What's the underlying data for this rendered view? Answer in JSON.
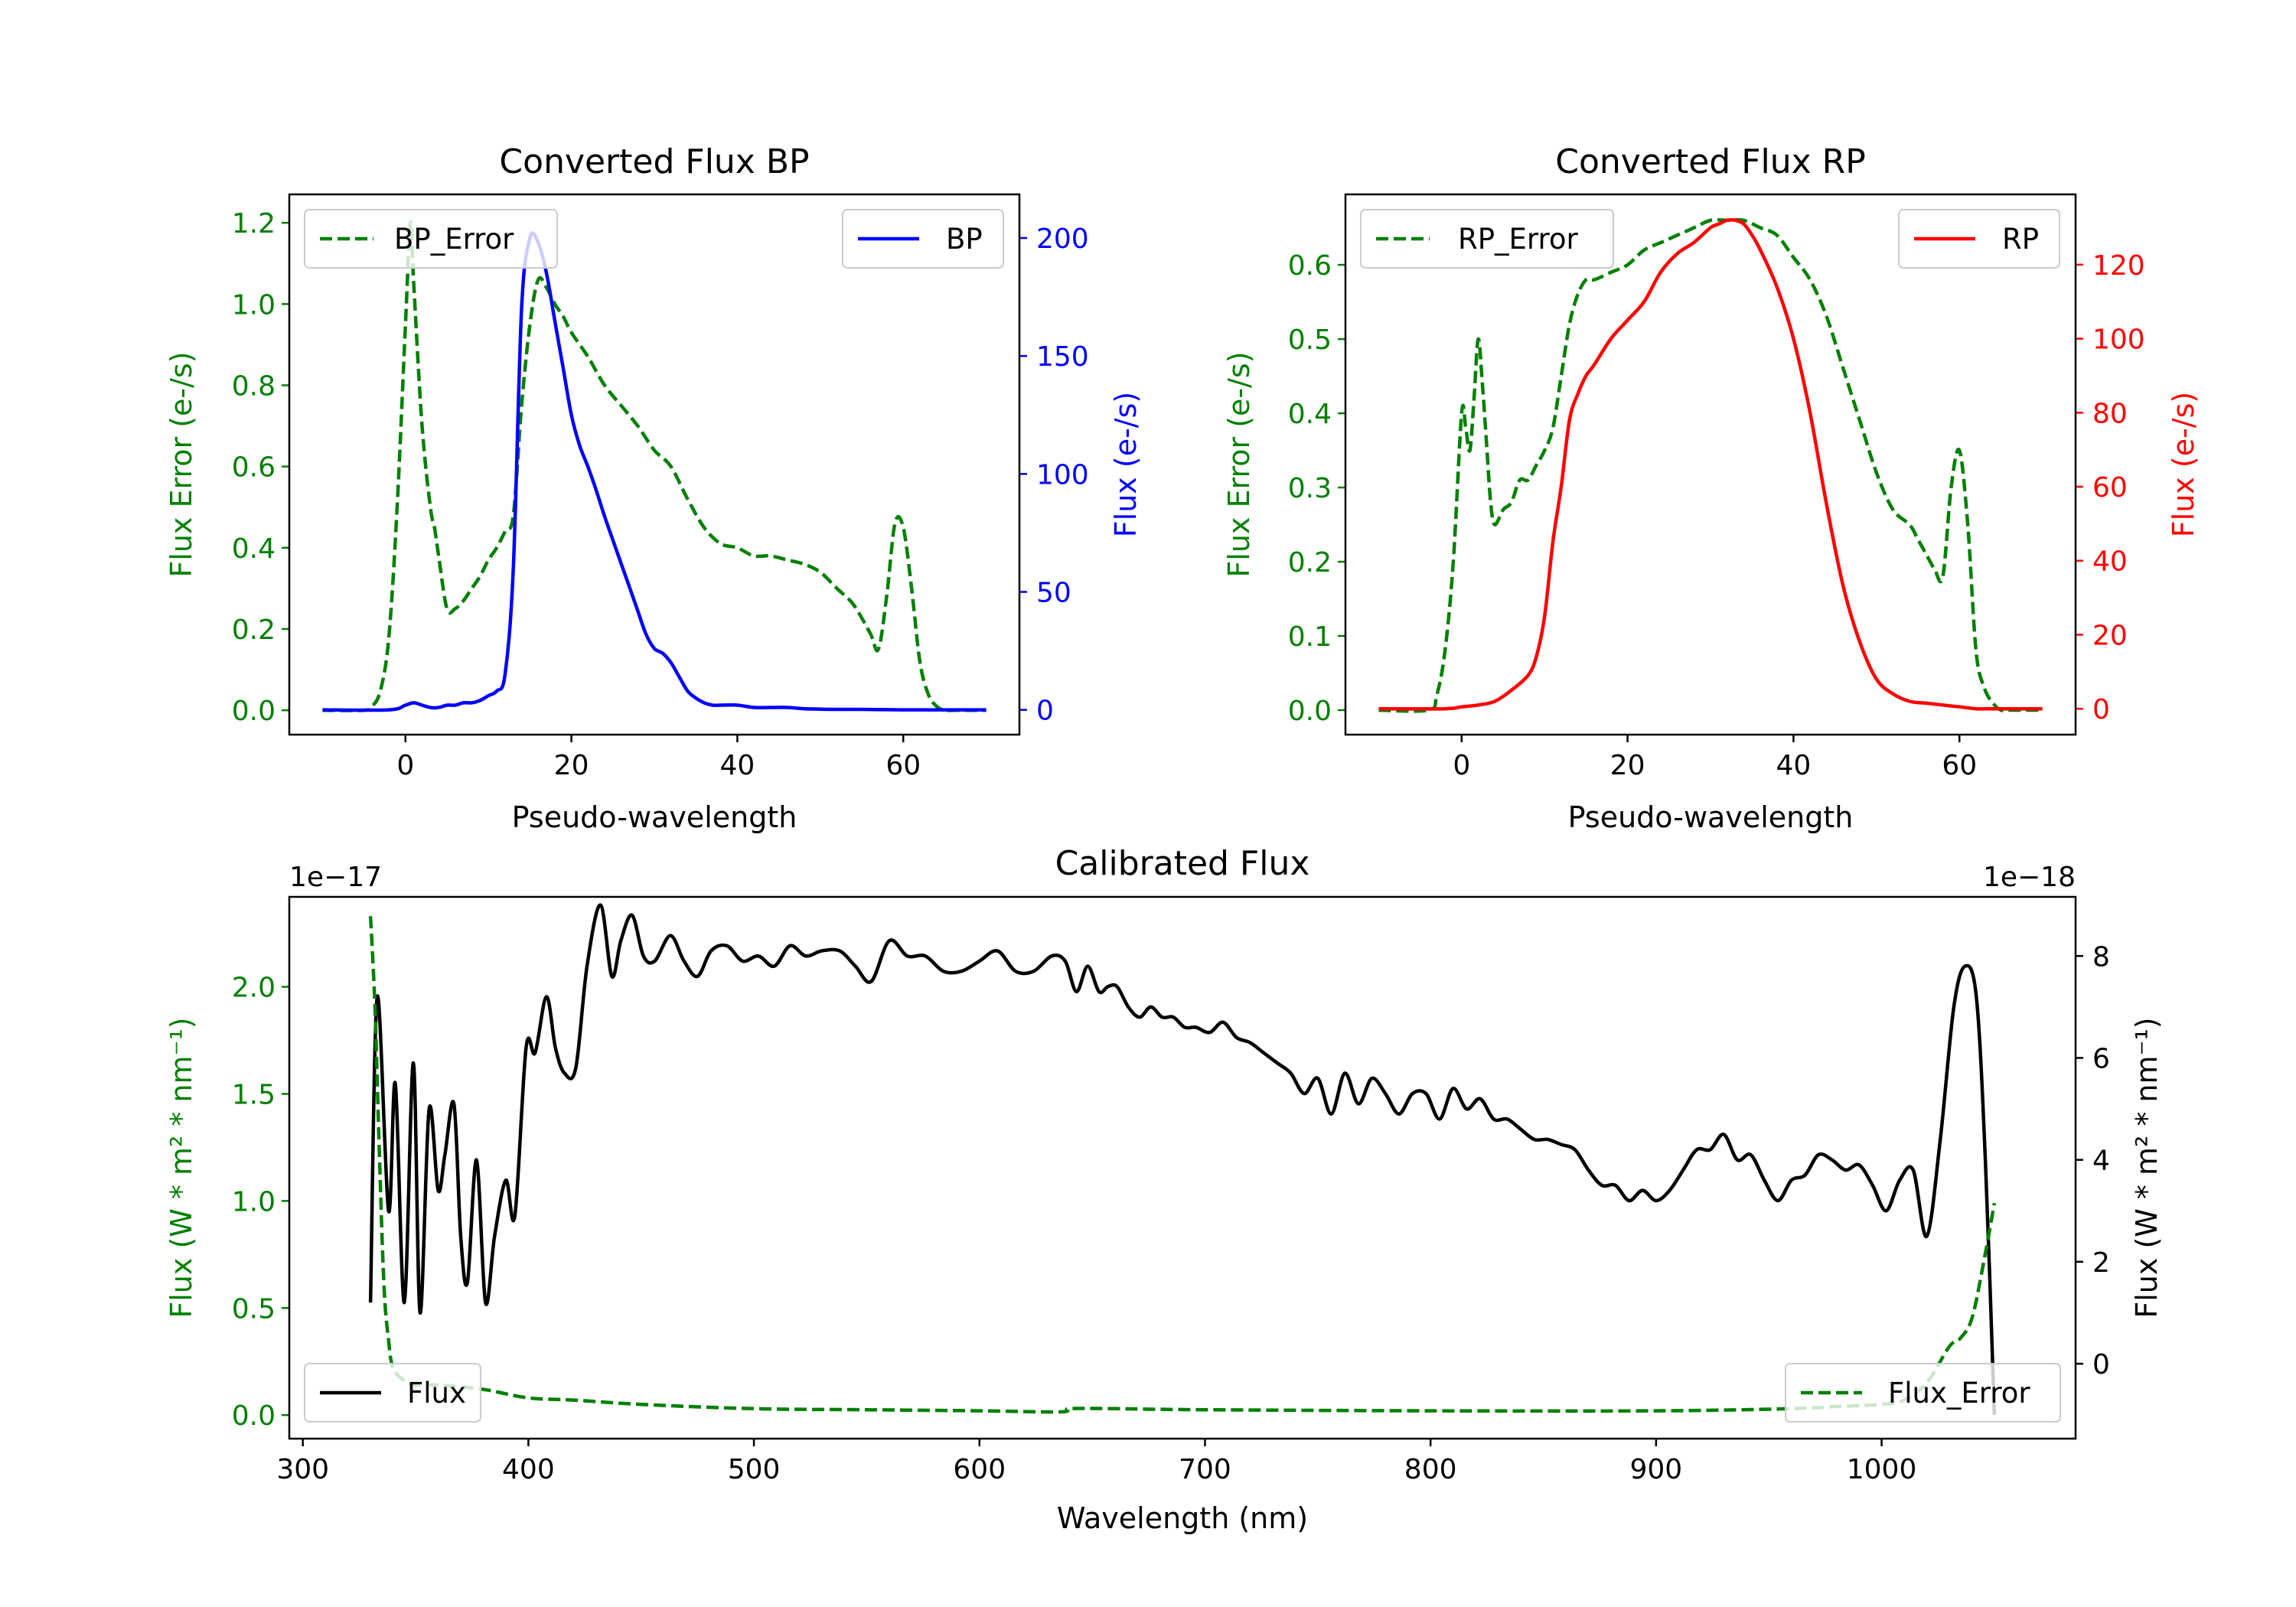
{
  "chart_data": [
    {
      "type": "line",
      "title": "Converted Flux BP",
      "xlabel": "Pseudo-wavelength",
      "xlim": [
        -14,
        74
      ],
      "xticks": [
        0,
        20,
        40,
        60
      ],
      "left_axis": {
        "label": "Flux Error (e-/s)",
        "color": "#008000",
        "ylim": [
          -0.06,
          1.27
        ],
        "ticks": [
          0.0,
          0.2,
          0.4,
          0.6,
          0.8,
          1.0,
          1.2
        ],
        "tick_labels": [
          "0.0",
          "0.2",
          "0.4",
          "0.6",
          "0.8",
          "1.0",
          "1.2"
        ]
      },
      "right_axis": {
        "label": "Flux (e-/s)",
        "color": "#0000ff",
        "ylim": [
          -10.5,
          218.5
        ],
        "ticks": [
          0,
          50,
          100,
          150,
          200
        ],
        "tick_labels": [
          "0",
          "50",
          "100",
          "150",
          "200"
        ]
      },
      "series": [
        {
          "name": "BP_Error",
          "axis": "left",
          "color": "#008000",
          "dash": true,
          "x": [
            -10,
            -5,
            -4,
            -3,
            -2,
            -1,
            0,
            0.6,
            1,
            2,
            3,
            3.5,
            4,
            5,
            6,
            7,
            8,
            9,
            10,
            11,
            12,
            13,
            14,
            15,
            16,
            17,
            18,
            19,
            20,
            22,
            24,
            26,
            28,
            30,
            32,
            34,
            36,
            38,
            40,
            42,
            44,
            46,
            48,
            50,
            52,
            54,
            56,
            57,
            58,
            59,
            60,
            61,
            62,
            63,
            64,
            65,
            66,
            68,
            70
          ],
          "y": [
            0.0,
            0.0,
            0.01,
            0.05,
            0.18,
            0.5,
            0.95,
            1.2,
            1.05,
            0.7,
            0.5,
            0.45,
            0.38,
            0.25,
            0.25,
            0.27,
            0.3,
            0.33,
            0.37,
            0.4,
            0.44,
            0.48,
            0.75,
            0.95,
            1.06,
            1.04,
            1.0,
            0.97,
            0.93,
            0.87,
            0.8,
            0.75,
            0.7,
            0.64,
            0.6,
            0.52,
            0.45,
            0.41,
            0.4,
            0.38,
            0.38,
            0.37,
            0.36,
            0.34,
            0.3,
            0.26,
            0.19,
            0.15,
            0.28,
            0.46,
            0.45,
            0.3,
            0.12,
            0.04,
            0.01,
            0.0,
            0.0,
            0.0,
            0.0
          ]
        },
        {
          "name": "BP",
          "axis": "right",
          "color": "#0000ff",
          "dash": false,
          "x": [
            -10,
            -2,
            0,
            1,
            2,
            3,
            4,
            5,
            6,
            7,
            8,
            9,
            10,
            11,
            12,
            13,
            14,
            15,
            16,
            17,
            18,
            19,
            20,
            21,
            22,
            23,
            24,
            25,
            26,
            27,
            28,
            29,
            30,
            31,
            32,
            33,
            34,
            35,
            36,
            37,
            38,
            40,
            42,
            44,
            46,
            48,
            50,
            52,
            55,
            60,
            65,
            70
          ],
          "y": [
            0,
            0,
            2,
            3,
            2,
            1,
            1,
            2,
            2,
            3,
            3,
            4,
            6,
            8,
            15,
            60,
            170,
            200,
            198,
            185,
            165,
            145,
            125,
            112,
            103,
            93,
            82,
            72,
            62,
            52,
            42,
            32,
            26,
            24,
            20,
            14,
            8,
            5,
            3,
            2,
            2,
            2,
            1,
            1,
            1,
            0.5,
            0.3,
            0.2,
            0.2,
            0,
            0,
            0
          ]
        }
      ],
      "legends": [
        {
          "position": "upper left",
          "entries": [
            "BP_Error"
          ]
        },
        {
          "position": "upper right",
          "entries": [
            "BP"
          ]
        }
      ]
    },
    {
      "type": "line",
      "title": "Converted Flux RP",
      "xlabel": "Pseudo-wavelength",
      "xlim": [
        -14,
        74
      ],
      "xticks": [
        0,
        20,
        40,
        60
      ],
      "left_axis": {
        "label": "Flux Error (e-/s)",
        "color": "#008000",
        "ylim": [
          -0.033,
          0.695
        ],
        "ticks": [
          0.0,
          0.1,
          0.2,
          0.3,
          0.4,
          0.5,
          0.6
        ],
        "tick_labels": [
          "0.0",
          "0.1",
          "0.2",
          "0.3",
          "0.4",
          "0.5",
          "0.6"
        ]
      },
      "right_axis": {
        "label": "Flux (e-/s)",
        "color": "#ff0000",
        "ylim": [
          -7,
          139
        ],
        "ticks": [
          0,
          20,
          40,
          60,
          80,
          100,
          120
        ],
        "tick_labels": [
          "0",
          "20",
          "40",
          "60",
          "80",
          "100",
          "120"
        ]
      },
      "series": [
        {
          "name": "RP_Error",
          "axis": "left",
          "color": "#008000",
          "dash": true,
          "x": [
            -10,
            -4,
            -3,
            -2,
            -1,
            0,
            0.5,
            1,
            1.5,
            2,
            2.5,
            3,
            3.5,
            4,
            5,
            6,
            7,
            8,
            9,
            10,
            11,
            12,
            13,
            14,
            15,
            16,
            18,
            20,
            22,
            24,
            26,
            28,
            30,
            32,
            34,
            36,
            38,
            40,
            42,
            44,
            46,
            48,
            50,
            52,
            54,
            55,
            56,
            57,
            58,
            59,
            60,
            61,
            62,
            63,
            64,
            65,
            66,
            68,
            70
          ],
          "y": [
            0.0,
            0.0,
            0.02,
            0.08,
            0.2,
            0.4,
            0.38,
            0.35,
            0.42,
            0.5,
            0.44,
            0.36,
            0.28,
            0.25,
            0.27,
            0.28,
            0.31,
            0.31,
            0.33,
            0.35,
            0.38,
            0.45,
            0.52,
            0.56,
            0.58,
            0.58,
            0.59,
            0.6,
            0.62,
            0.63,
            0.64,
            0.65,
            0.66,
            0.66,
            0.66,
            0.65,
            0.64,
            0.61,
            0.58,
            0.53,
            0.46,
            0.39,
            0.32,
            0.27,
            0.25,
            0.23,
            0.21,
            0.19,
            0.18,
            0.3,
            0.35,
            0.25,
            0.08,
            0.03,
            0.01,
            0.0,
            0.0,
            0.0,
            0.0
          ]
        },
        {
          "name": "RP",
          "axis": "right",
          "color": "#ff0000",
          "dash": false,
          "x": [
            -10,
            -2,
            0,
            2,
            4,
            6,
            8,
            9,
            10,
            11,
            12,
            13,
            14,
            15,
            16,
            18,
            20,
            22,
            24,
            26,
            28,
            30,
            31,
            32,
            33,
            34,
            35,
            36,
            38,
            40,
            42,
            44,
            46,
            48,
            50,
            52,
            54,
            56,
            58,
            60,
            62,
            64,
            66,
            68,
            70
          ],
          "y": [
            0,
            0,
            0.5,
            1,
            2,
            5,
            9,
            14,
            25,
            45,
            60,
            78,
            85,
            90,
            93,
            100,
            105,
            110,
            118,
            123,
            126,
            130,
            131,
            132,
            132,
            131,
            128,
            124,
            114,
            100,
            80,
            55,
            33,
            18,
            8,
            4,
            2,
            1.5,
            1,
            0.5,
            0,
            0,
            0,
            0,
            0
          ]
        }
      ],
      "legends": [
        {
          "position": "upper left",
          "entries": [
            "RP_Error"
          ]
        },
        {
          "position": "upper right",
          "entries": [
            "RP"
          ]
        }
      ]
    },
    {
      "type": "line",
      "title": "Calibrated Flux",
      "xlabel": "Wavelength (nm)",
      "xlim": [
        294,
        1086
      ],
      "xticks": [
        300,
        400,
        500,
        600,
        700,
        800,
        900,
        1000
      ],
      "left_axis": {
        "label": "Flux (W * m² * nm⁻¹)",
        "color": "#008000",
        "ylim": [
          -0.11,
          2.42
        ],
        "ticks": [
          0.0,
          0.5,
          1.0,
          1.5,
          2.0
        ],
        "tick_labels": [
          "0.0",
          "0.5",
          "1.0",
          "1.5",
          "2.0"
        ],
        "offset_text": "1e−17"
      },
      "right_axis": {
        "label": "Flux (W * m² * nm⁻¹)",
        "color": "#000000",
        "ylim": [
          -1.47,
          9.16
        ],
        "ticks": [
          0,
          2,
          4,
          6,
          8
        ],
        "tick_labels": [
          "0",
          "2",
          "4",
          "6",
          "8"
        ],
        "offset_text": "1e−18"
      },
      "series": [
        {
          "name": "Flux",
          "axis": "right",
          "color": "#000000",
          "dash": false,
          "x": [
            330,
            333,
            338,
            341,
            345,
            349,
            352,
            356,
            360,
            363,
            367,
            370,
            373,
            377,
            381,
            385,
            390,
            394,
            399,
            403,
            408,
            412,
            416,
            421,
            426,
            432,
            437,
            441,
            446,
            451,
            456,
            463,
            469,
            475,
            481,
            488,
            495,
            502,
            509,
            516,
            523,
            530,
            538,
            545,
            552,
            560,
            568,
            576,
            584,
            592,
            600,
            608,
            616,
            624,
            632,
            638,
            643,
            648,
            653,
            657,
            661,
            666,
            671,
            676,
            681,
            686,
            691,
            696,
            702,
            708,
            714,
            720,
            726,
            732,
            738,
            744,
            750,
            756,
            762,
            768,
            774,
            780,
            786,
            792,
            798,
            804,
            810,
            816,
            822,
            828,
            834,
            840,
            846,
            852,
            858,
            864,
            870,
            876,
            882,
            888,
            894,
            900,
            906,
            912,
            918,
            924,
            930,
            936,
            942,
            948,
            954,
            960,
            966,
            972,
            978,
            984,
            990,
            996,
            1002,
            1008,
            1014,
            1020,
            1026,
            1032,
            1037,
            1042,
            1046,
            1050
          ],
          "y": [
            1.2,
            7.2,
            3.0,
            5.5,
            1.2,
            5.9,
            1.0,
            5.0,
            3.4,
            4.1,
            5.1,
            2.5,
            1.6,
            4.0,
            1.2,
            2.5,
            3.6,
            2.9,
            6.2,
            6.1,
            7.2,
            6.2,
            5.7,
            5.8,
            7.8,
            9.0,
            7.6,
            8.3,
            8.8,
            8.0,
            7.9,
            8.4,
            7.9,
            7.6,
            8.1,
            8.2,
            7.9,
            8.0,
            7.8,
            8.2,
            8.0,
            8.1,
            8.1,
            7.8,
            7.5,
            8.3,
            8.0,
            8.0,
            7.7,
            7.7,
            7.9,
            8.1,
            7.7,
            7.7,
            8.0,
            7.9,
            7.3,
            7.8,
            7.3,
            7.4,
            7.4,
            7.0,
            6.8,
            7.0,
            6.8,
            6.8,
            6.6,
            6.6,
            6.5,
            6.7,
            6.4,
            6.3,
            6.1,
            5.9,
            5.7,
            5.3,
            5.6,
            4.9,
            5.7,
            5.1,
            5.6,
            5.3,
            4.9,
            5.3,
            5.3,
            4.8,
            5.4,
            5.0,
            5.2,
            4.8,
            4.8,
            4.6,
            4.4,
            4.4,
            4.3,
            4.2,
            3.8,
            3.5,
            3.5,
            3.2,
            3.4,
            3.2,
            3.4,
            3.8,
            4.2,
            4.2,
            4.5,
            4.0,
            4.1,
            3.6,
            3.2,
            3.6,
            3.7,
            4.1,
            4.0,
            3.8,
            3.9,
            3.5,
            3.0,
            3.6,
            3.8,
            2.5,
            4.4,
            7.0,
            7.8,
            7.2,
            4.0,
            -1.0
          ]
        },
        {
          "name": "Flux_Error",
          "axis": "left",
          "color": "#008000",
          "dash": true,
          "x": [
            330,
            332,
            334,
            336,
            338,
            340,
            345,
            350,
            360,
            380,
            400,
            420,
            450,
            500,
            550,
            600,
            636,
            640,
            660,
            700,
            800,
            900,
            960,
            980,
            1000,
            1010,
            1020,
            1030,
            1035,
            1040,
            1045,
            1050
          ],
          "y": [
            2.33,
            1.9,
            1.2,
            0.6,
            0.35,
            0.22,
            0.16,
            0.14,
            0.14,
            0.12,
            0.08,
            0.07,
            0.05,
            0.03,
            0.025,
            0.02,
            0.015,
            0.03,
            0.03,
            0.025,
            0.02,
            0.02,
            0.03,
            0.04,
            0.05,
            0.07,
            0.15,
            0.32,
            0.36,
            0.45,
            0.7,
            0.99
          ]
        }
      ],
      "legends": [
        {
          "position": "lower left",
          "entries": [
            "Flux"
          ]
        },
        {
          "position": "lower right",
          "entries": [
            "Flux_Error"
          ]
        }
      ]
    }
  ]
}
